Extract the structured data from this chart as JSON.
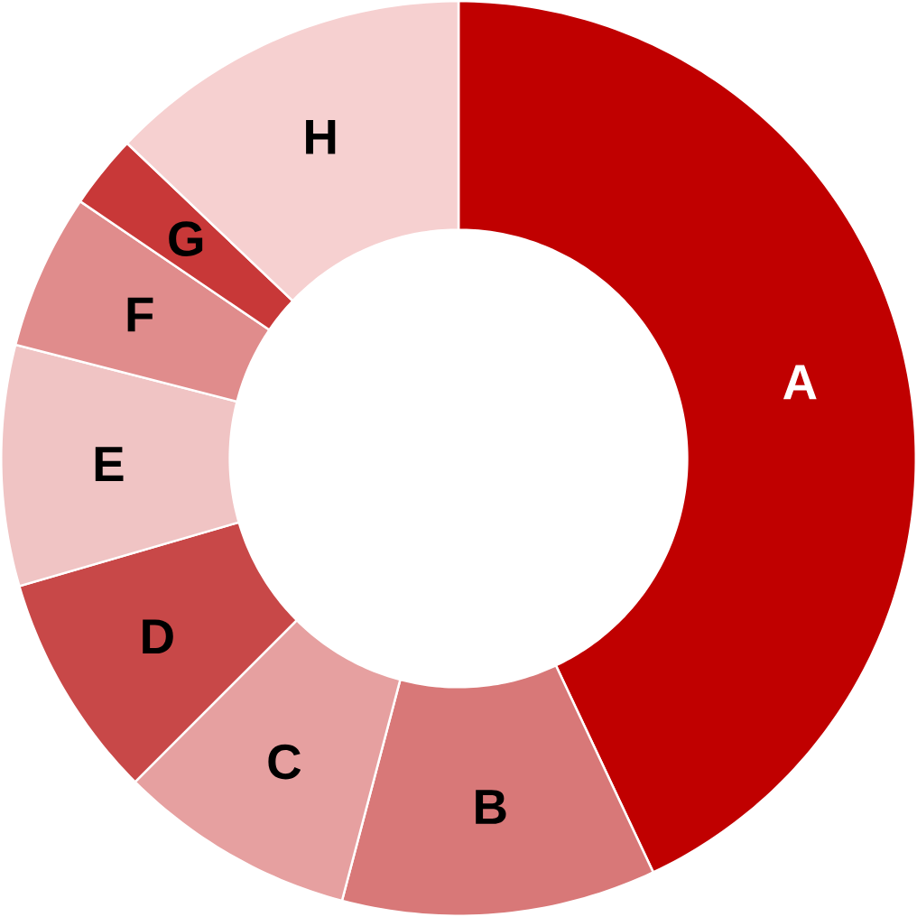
{
  "chart_data": {
    "type": "donut",
    "categories": [
      "A",
      "B",
      "C",
      "D",
      "E",
      "F",
      "G",
      "H"
    ],
    "values": [
      43.0,
      11.1,
      8.4,
      8.0,
      8.5,
      5.5,
      2.6,
      12.9
    ],
    "colors": [
      "#c00000",
      "#d87878",
      "#e6a0a0",
      "#c84848",
      "#f0c4c4",
      "#e08c8c",
      "#c83838",
      "#f6d0d0"
    ]
  }
}
